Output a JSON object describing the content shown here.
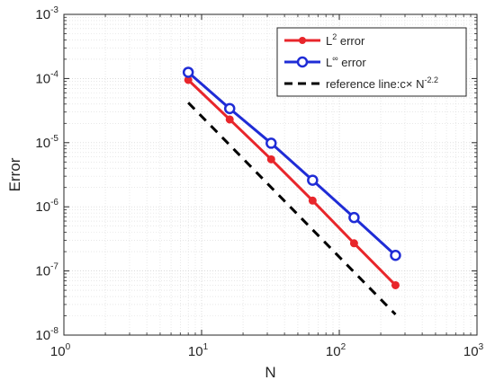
{
  "chart_data": {
    "type": "line",
    "x_scale": "log",
    "y_scale": "log",
    "xlabel": "N",
    "ylabel": "Error",
    "xlim": [
      1,
      1000
    ],
    "ylim": [
      1e-08,
      0.001
    ],
    "grid": true,
    "legend_position": "top-right",
    "x_ticks": [
      {
        "base": "10",
        "exp": "0"
      },
      {
        "base": "10",
        "exp": "1"
      },
      {
        "base": "10",
        "exp": "2"
      },
      {
        "base": "10",
        "exp": "3"
      }
    ],
    "y_ticks": [
      {
        "base": "10",
        "exp": "-8"
      },
      {
        "base": "10",
        "exp": "-7"
      },
      {
        "base": "10",
        "exp": "-6"
      },
      {
        "base": "10",
        "exp": "-5"
      },
      {
        "base": "10",
        "exp": "-4"
      },
      {
        "base": "10",
        "exp": "-3"
      }
    ],
    "series": [
      {
        "label_main": "L",
        "label_sup": "2",
        "label_rest": " error",
        "color": "#e8262b",
        "marker": "filled-circle",
        "line": "solid",
        "x": [
          8,
          16,
          32,
          64,
          128,
          256
        ],
        "y": [
          9.5e-05,
          2.3e-05,
          5.5e-06,
          1.25e-06,
          2.7e-07,
          6e-08
        ]
      },
      {
        "label_main": "L",
        "label_sup": "∞",
        "label_rest": " error",
        "color": "#1f2cd6",
        "marker": "open-circle",
        "line": "solid",
        "x": [
          8,
          16,
          32,
          64,
          128,
          256
        ],
        "y": [
          0.000125,
          3.4e-05,
          9.8e-06,
          2.6e-06,
          6.8e-07,
          1.75e-07
        ]
      },
      {
        "label_main": "reference line:c× N",
        "label_sup": "-2.2",
        "label_rest": "",
        "color": "#000000",
        "marker": "none",
        "line": "dashed",
        "x": [
          8,
          256
        ],
        "y": [
          4.2e-05,
          2.1e-08
        ]
      }
    ]
  }
}
